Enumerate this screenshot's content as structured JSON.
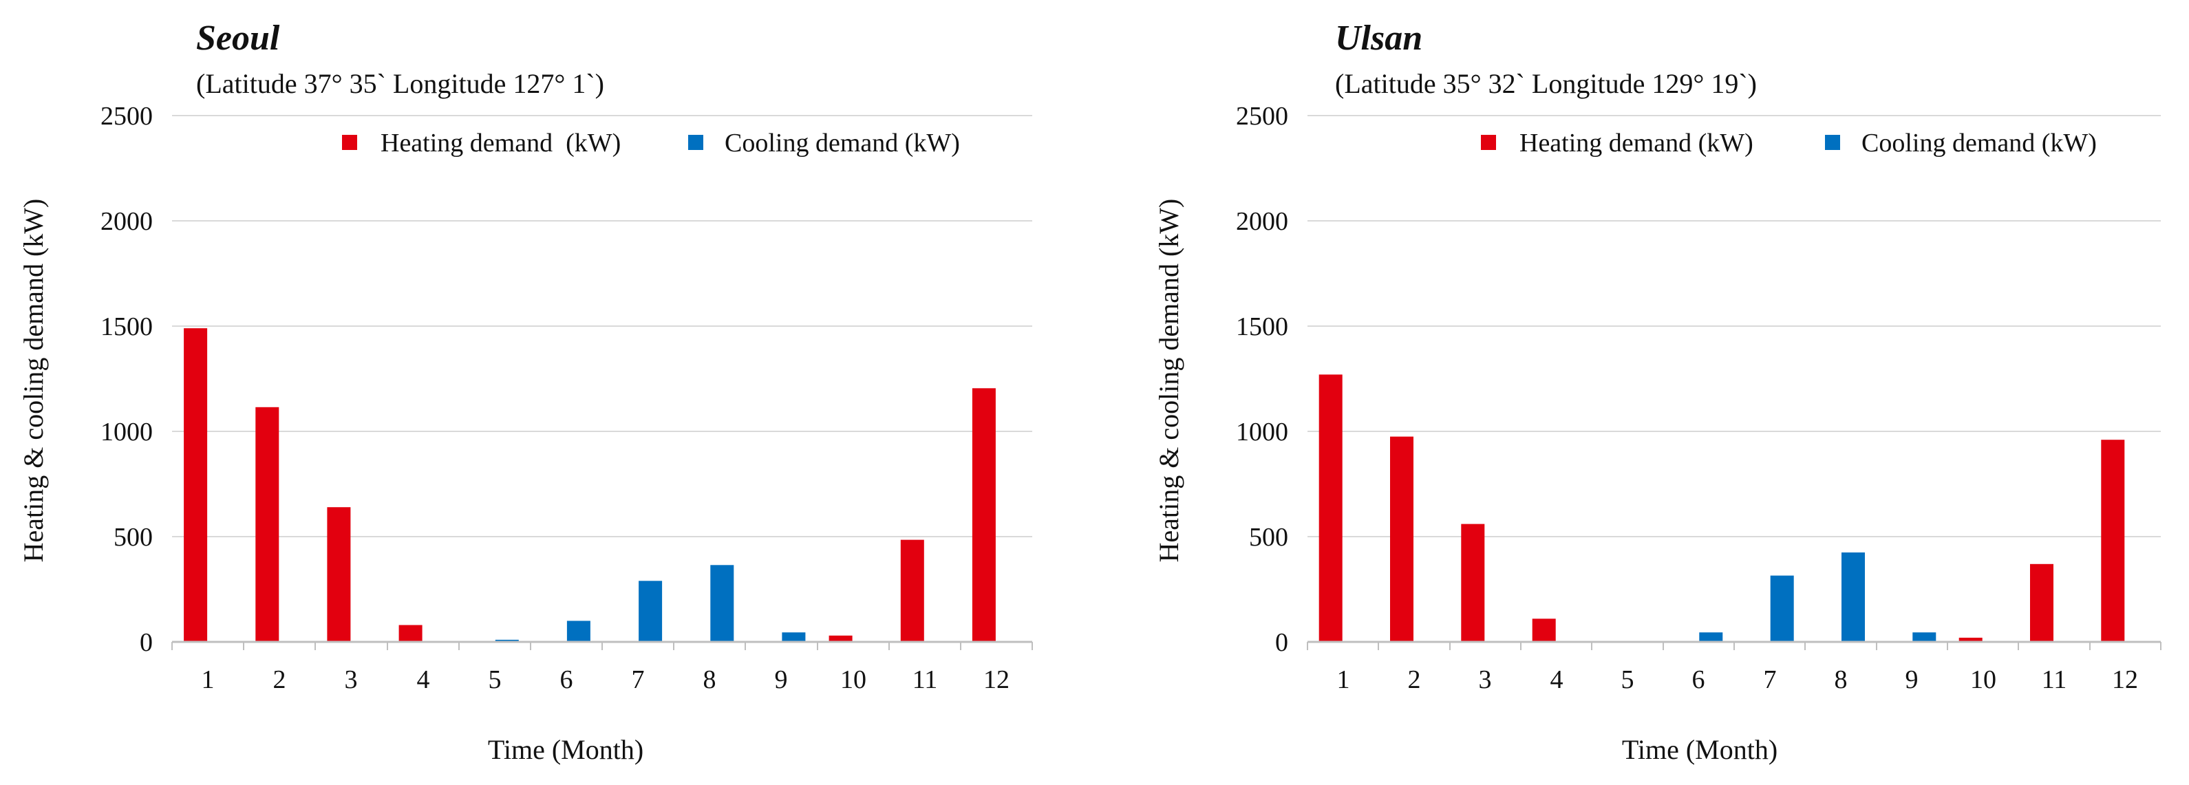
{
  "colors": {
    "heating": "#E2000F",
    "cooling": "#0070C0",
    "grid": "#D9D9D9",
    "axis": "#BFBFBF"
  },
  "chart_data": [
    {
      "type": "bar",
      "title": "Seoul",
      "subtitle": "(Latitude 37° 35` Longitude 127° 1`)",
      "xlabel": "Time (Month)",
      "ylabel": "Heating & cooling demand (kW)",
      "ylim": [
        0,
        2500
      ],
      "yticks": [
        0,
        500,
        1000,
        1500,
        2000,
        2500
      ],
      "grid": true,
      "legend_position": "top-right",
      "categories": [
        "1",
        "2",
        "3",
        "4",
        "5",
        "6",
        "7",
        "8",
        "9",
        "10",
        "11",
        "12"
      ],
      "series": [
        {
          "name": "Heating demand  (kW)",
          "color": "heating",
          "values": [
            1490,
            1115,
            640,
            80,
            0,
            0,
            0,
            0,
            0,
            30,
            485,
            1205
          ]
        },
        {
          "name": "Cooling demand (kW)",
          "color": "cooling",
          "values": [
            0,
            0,
            0,
            0,
            10,
            100,
            290,
            365,
            45,
            0,
            0,
            0
          ]
        }
      ]
    },
    {
      "type": "bar",
      "title": "Ulsan",
      "subtitle": "(Latitude 35° 32` Longitude 129° 19`)",
      "xlabel": "Time (Month)",
      "ylabel": "Heating & cooling demand (kW)",
      "ylim": [
        0,
        2500
      ],
      "yticks": [
        0,
        500,
        1000,
        1500,
        2000,
        2500
      ],
      "grid": true,
      "legend_position": "top-right",
      "categories": [
        "1",
        "2",
        "3",
        "4",
        "5",
        "6",
        "7",
        "8",
        "9",
        "10",
        "11",
        "12"
      ],
      "series": [
        {
          "name": "Heating demand (kW)",
          "color": "heating",
          "values": [
            1270,
            975,
            560,
            110,
            0,
            0,
            0,
            0,
            0,
            20,
            370,
            960
          ]
        },
        {
          "name": "Cooling demand (kW)",
          "color": "cooling",
          "values": [
            0,
            0,
            0,
            0,
            0,
            45,
            315,
            425,
            45,
            0,
            0,
            0
          ]
        }
      ]
    }
  ]
}
